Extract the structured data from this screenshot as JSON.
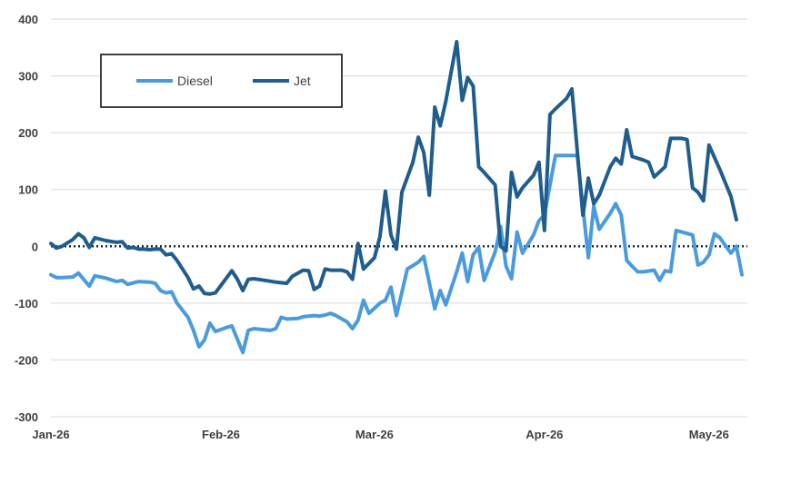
{
  "chart_data": {
    "type": "line",
    "title": "",
    "xlabel": "",
    "ylabel": "",
    "ylim": [
      -300,
      400
    ],
    "yticks": [
      400,
      300,
      200,
      100,
      0,
      -100,
      -200,
      -300
    ],
    "xticks": [
      "Jan-26",
      "Feb-26",
      "Mar-26",
      "Apr-26",
      "May-26"
    ],
    "xtick_days": [
      0,
      31,
      59,
      90,
      120
    ],
    "x_range_days": [
      0,
      127
    ],
    "grid": "horizontal",
    "zero_line": "dotted",
    "legend": {
      "placement": "top-left",
      "entries": [
        "Diesel",
        "Jet"
      ]
    },
    "series": [
      {
        "name": "Diesel",
        "color": "#4A9BDD",
        "points": [
          [
            0,
            -50
          ],
          [
            1,
            -55
          ],
          [
            2,
            -55
          ],
          [
            4,
            -54
          ],
          [
            5,
            -47
          ],
          [
            7,
            -70
          ],
          [
            8,
            -52
          ],
          [
            10,
            -56
          ],
          [
            12,
            -62
          ],
          [
            13,
            -60
          ],
          [
            14,
            -67
          ],
          [
            16,
            -62
          ],
          [
            18,
            -63
          ],
          [
            19,
            -65
          ],
          [
            20,
            -78
          ],
          [
            21,
            -82
          ],
          [
            22,
            -80
          ],
          [
            23,
            -100
          ],
          [
            25,
            -125
          ],
          [
            26,
            -148
          ],
          [
            27,
            -177
          ],
          [
            28,
            -165
          ],
          [
            29,
            -135
          ],
          [
            30,
            -150
          ],
          [
            32,
            -143
          ],
          [
            33,
            -140
          ],
          [
            35,
            -187
          ],
          [
            36,
            -148
          ],
          [
            37,
            -145
          ],
          [
            39,
            -147
          ],
          [
            40,
            -148
          ],
          [
            41,
            -145
          ],
          [
            42,
            -125
          ],
          [
            43,
            -128
          ],
          [
            45,
            -127
          ],
          [
            46,
            -124
          ],
          [
            47,
            -123
          ],
          [
            48,
            -122
          ],
          [
            49,
            -123
          ],
          [
            50,
            -121
          ],
          [
            51,
            -118
          ],
          [
            52,
            -122
          ],
          [
            54,
            -133
          ],
          [
            55,
            -145
          ],
          [
            56,
            -130
          ],
          [
            57,
            -95
          ],
          [
            58,
            -118
          ],
          [
            60,
            -100
          ],
          [
            61,
            -95
          ],
          [
            62,
            -72
          ],
          [
            63,
            -122
          ],
          [
            65,
            -40
          ],
          [
            67,
            -28
          ],
          [
            68,
            -18
          ],
          [
            70,
            -110
          ],
          [
            71,
            -78
          ],
          [
            72,
            -103
          ],
          [
            74,
            -45
          ],
          [
            75,
            -12
          ],
          [
            76,
            -62
          ],
          [
            77,
            -15
          ],
          [
            78,
            -2
          ],
          [
            79,
            -60
          ],
          [
            81,
            -10
          ],
          [
            82,
            35
          ],
          [
            83,
            -35
          ],
          [
            84,
            -57
          ],
          [
            85,
            25
          ],
          [
            86,
            -12
          ],
          [
            88,
            20
          ],
          [
            89,
            45
          ],
          [
            90,
            55
          ],
          [
            92,
            160
          ],
          [
            93,
            160
          ],
          [
            95,
            160
          ],
          [
            96,
            160
          ],
          [
            98,
            -20
          ],
          [
            99,
            70
          ],
          [
            100,
            30
          ],
          [
            102,
            58
          ],
          [
            103,
            75
          ],
          [
            104,
            55
          ],
          [
            105,
            -25
          ],
          [
            106,
            -35
          ],
          [
            107,
            -45
          ],
          [
            108,
            -45
          ],
          [
            110,
            -42
          ],
          [
            111,
            -60
          ],
          [
            112,
            -43
          ],
          [
            113,
            -45
          ],
          [
            114,
            28
          ],
          [
            117,
            20
          ],
          [
            118,
            -33
          ],
          [
            119,
            -28
          ],
          [
            120,
            -15
          ],
          [
            121,
            22
          ],
          [
            122,
            15
          ],
          [
            124,
            -12
          ],
          [
            125,
            0
          ],
          [
            126,
            -50
          ]
        ]
      },
      {
        "name": "Jet",
        "color": "#1F5D8E",
        "points": [
          [
            0,
            5
          ],
          [
            1,
            -3
          ],
          [
            2,
            0
          ],
          [
            4,
            12
          ],
          [
            5,
            22
          ],
          [
            6,
            15
          ],
          [
            7,
            -2
          ],
          [
            8,
            15
          ],
          [
            10,
            10
          ],
          [
            12,
            7
          ],
          [
            13,
            8
          ],
          [
            14,
            -3
          ],
          [
            15,
            -2
          ],
          [
            16,
            -5
          ],
          [
            17,
            -5
          ],
          [
            18,
            -6
          ],
          [
            19,
            -5
          ],
          [
            20,
            -5
          ],
          [
            21,
            -15
          ],
          [
            22,
            -13
          ],
          [
            23,
            -25
          ],
          [
            25,
            -55
          ],
          [
            26,
            -75
          ],
          [
            27,
            -70
          ],
          [
            28,
            -83
          ],
          [
            29,
            -84
          ],
          [
            30,
            -82
          ],
          [
            33,
            -43
          ],
          [
            34,
            -58
          ],
          [
            35,
            -78
          ],
          [
            36,
            -58
          ],
          [
            37,
            -57
          ],
          [
            39,
            -60
          ],
          [
            41,
            -63
          ],
          [
            43,
            -65
          ],
          [
            44,
            -53
          ],
          [
            46,
            -42
          ],
          [
            47,
            -43
          ],
          [
            48,
            -76
          ],
          [
            49,
            -70
          ],
          [
            50,
            -40
          ],
          [
            51,
            -42
          ],
          [
            53,
            -42
          ],
          [
            54,
            -45
          ],
          [
            55,
            -58
          ],
          [
            56,
            5
          ],
          [
            57,
            -40
          ],
          [
            59,
            -20
          ],
          [
            60,
            17
          ],
          [
            61,
            97
          ],
          [
            62,
            20
          ],
          [
            63,
            -5
          ],
          [
            64,
            95
          ],
          [
            66,
            148
          ],
          [
            67,
            192
          ],
          [
            68,
            165
          ],
          [
            69,
            90
          ],
          [
            70,
            245
          ],
          [
            71,
            212
          ],
          [
            72,
            255
          ],
          [
            74,
            360
          ],
          [
            75,
            257
          ],
          [
            76,
            297
          ],
          [
            77,
            282
          ],
          [
            78,
            140
          ],
          [
            79,
            130
          ],
          [
            81,
            108
          ],
          [
            82,
            0
          ],
          [
            83,
            -8
          ],
          [
            84,
            130
          ],
          [
            85,
            87
          ],
          [
            86,
            103
          ],
          [
            88,
            125
          ],
          [
            89,
            148
          ],
          [
            90,
            28
          ],
          [
            91,
            232
          ],
          [
            92,
            242
          ],
          [
            94,
            260
          ],
          [
            95,
            277
          ],
          [
            97,
            55
          ],
          [
            98,
            120
          ],
          [
            99,
            75
          ],
          [
            100,
            90
          ],
          [
            102,
            140
          ],
          [
            103,
            155
          ],
          [
            104,
            145
          ],
          [
            105,
            205
          ],
          [
            106,
            158
          ],
          [
            107,
            155
          ],
          [
            108,
            152
          ],
          [
            109,
            148
          ],
          [
            110,
            122
          ],
          [
            112,
            140
          ],
          [
            113,
            190
          ],
          [
            115,
            190
          ],
          [
            116,
            188
          ],
          [
            117,
            103
          ],
          [
            118,
            95
          ],
          [
            119,
            80
          ],
          [
            120,
            178
          ],
          [
            122,
            135
          ],
          [
            124,
            88
          ],
          [
            125,
            47
          ]
        ]
      }
    ]
  }
}
